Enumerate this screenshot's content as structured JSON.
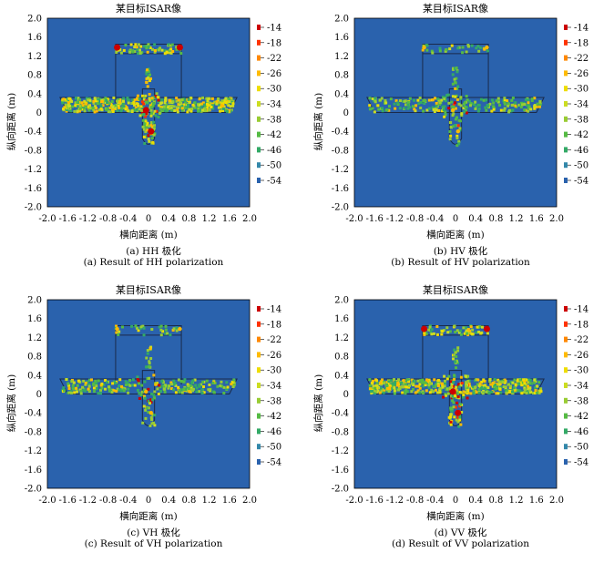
{
  "figure": {
    "panels": [
      {
        "id": "a",
        "caption_cn": "(a) HH 极化",
        "caption_en": "(a) Result of HH polarization"
      },
      {
        "id": "b",
        "caption_cn": "(b) HV 极化",
        "caption_en": "(b) Result of HV polarization"
      },
      {
        "id": "c",
        "caption_cn": "(c) VH 极化",
        "caption_en": "(c) Result of VH polarization"
      },
      {
        "id": "d",
        "caption_cn": "(d) VV 极化",
        "caption_en": "(d) Result of VV polarization"
      }
    ]
  },
  "chart_data": [
    {
      "type": "heatmap",
      "title": "某目标ISAR像",
      "xlabel": "横向距离 (m)",
      "ylabel": "纵向距离 (m)",
      "xlim": [
        -2.0,
        2.0
      ],
      "ylim": [
        -2.0,
        2.0
      ],
      "xticks": [
        "-2.0",
        "-1.6",
        "-1.2",
        "-0.8",
        "-0.4",
        "0",
        "0.4",
        "0.8",
        "1.2",
        "1.6",
        "2.0"
      ],
      "yticks": [
        "2.0",
        "1.6",
        "1.2",
        "0.8",
        "0.4",
        "0",
        "-0.4",
        "-0.8",
        "-1.2",
        "-1.6",
        "-2.0"
      ],
      "colorbar": {
        "ticks": [
          "-14",
          "-18",
          "-22",
          "-26",
          "-30",
          "-34",
          "-38",
          "-42",
          "-46",
          "-50",
          "-54"
        ],
        "colors": [
          "#cc0000",
          "#ff3300",
          "#ff8800",
          "#ffbb00",
          "#eedd00",
          "#ccdd22",
          "#99cc33",
          "#55bb44",
          "#33aa66",
          "#3388aa",
          "#2a62ad"
        ]
      },
      "intensity": "strong",
      "wing_emphasis": 1.0
    },
    {
      "type": "heatmap",
      "title": "某目标ISAR像",
      "xlabel": "横向距离 (m)",
      "ylabel": "纵向距离 (m)",
      "xlim": [
        -2.0,
        2.0
      ],
      "ylim": [
        -2.0,
        2.0
      ],
      "xticks": [
        "-2.0",
        "-1.6",
        "-1.2",
        "-0.8",
        "-0.4",
        "0",
        "0.4",
        "0.8",
        "1.2",
        "1.6",
        "2.0"
      ],
      "yticks": [
        "2.0",
        "1.6",
        "1.2",
        "0.8",
        "0.4",
        "0",
        "-0.4",
        "-0.8",
        "-1.2",
        "-1.6",
        "-2.0"
      ],
      "colorbar": {
        "ticks": [
          "-14",
          "-18",
          "-22",
          "-26",
          "-30",
          "-34",
          "-38",
          "-42",
          "-46",
          "-50",
          "-54"
        ],
        "colors": [
          "#cc0000",
          "#ff3300",
          "#ff8800",
          "#ffbb00",
          "#eedd00",
          "#ccdd22",
          "#99cc33",
          "#55bb44",
          "#33aa66",
          "#3388aa",
          "#2a62ad"
        ]
      },
      "intensity": "weak",
      "wing_emphasis": 0.5
    },
    {
      "type": "heatmap",
      "title": "某目标ISAR像",
      "xlabel": "横向距离 (m)",
      "ylabel": "纵向距离 (m)",
      "xlim": [
        -2.0,
        2.0
      ],
      "ylim": [
        -2.0,
        2.0
      ],
      "xticks": [
        "-2.0",
        "-1.6",
        "-1.2",
        "-0.8",
        "-0.4",
        "0",
        "0.4",
        "0.8",
        "1.2",
        "1.6",
        "2.0"
      ],
      "yticks": [
        "2.0",
        "1.6",
        "1.2",
        "0.8",
        "0.4",
        "0",
        "-0.4",
        "-0.8",
        "-1.2",
        "-1.6",
        "-2.0"
      ],
      "colorbar": {
        "ticks": [
          "-14",
          "-18",
          "-22",
          "-26",
          "-30",
          "-34",
          "-38",
          "-42",
          "-46",
          "-50",
          "-54"
        ],
        "colors": [
          "#cc0000",
          "#ff3300",
          "#ff8800",
          "#ffbb00",
          "#eedd00",
          "#ccdd22",
          "#99cc33",
          "#55bb44",
          "#33aa66",
          "#3388aa",
          "#2a62ad"
        ]
      },
      "intensity": "weak",
      "wing_emphasis": 0.6
    },
    {
      "type": "heatmap",
      "title": "某目标ISAR像",
      "xlabel": "横向距离 (m)",
      "ylabel": "纵向距离 (m)",
      "xlim": [
        -2.0,
        2.0
      ],
      "ylim": [
        -2.0,
        2.0
      ],
      "xticks": [
        "-2.0",
        "-1.6",
        "-1.2",
        "-0.8",
        "-0.4",
        "0",
        "0.4",
        "0.8",
        "1.2",
        "1.6",
        "2.0"
      ],
      "yticks": [
        "2.0",
        "1.6",
        "1.2",
        "0.8",
        "0.4",
        "0",
        "-0.4",
        "-0.8",
        "-1.2",
        "-1.6",
        "-2.0"
      ],
      "colorbar": {
        "ticks": [
          "-14",
          "-18",
          "-22",
          "-26",
          "-30",
          "-34",
          "-38",
          "-42",
          "-46",
          "-50",
          "-54"
        ],
        "colors": [
          "#cc0000",
          "#ff3300",
          "#ff8800",
          "#ffbb00",
          "#eedd00",
          "#ccdd22",
          "#99cc33",
          "#55bb44",
          "#33aa66",
          "#3388aa",
          "#2a62ad"
        ]
      },
      "intensity": "strong",
      "wing_emphasis": 1.0
    }
  ]
}
